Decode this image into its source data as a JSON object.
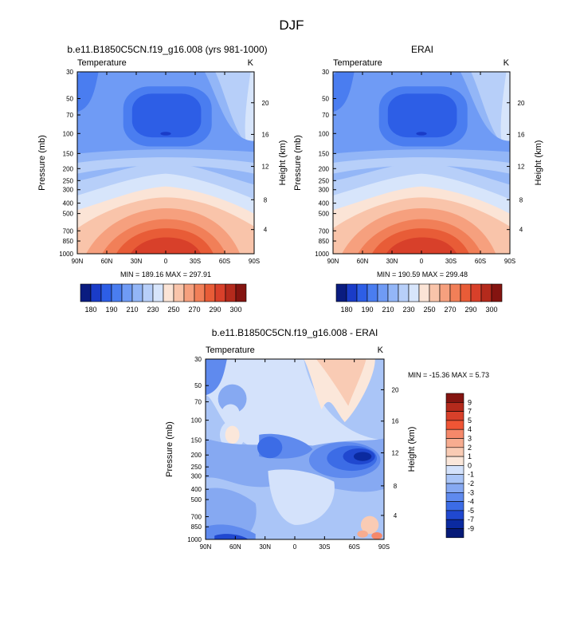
{
  "chart_data": [
    {
      "type": "heatmap",
      "title": "b.e11.B1850C5CN.f19_g16.008 (yrs 981-1000)",
      "left_label": "Temperature",
      "right_label": "K",
      "ylabel": "Pressure (mb)",
      "y2label": "Height (km)",
      "x_ticks": [
        "90N",
        "60N",
        "30N",
        "0",
        "30S",
        "60S",
        "90S"
      ],
      "y_ticks": [
        "30",
        "50",
        "70",
        "100",
        "150",
        "200",
        "250",
        "300",
        "400",
        "500",
        "700",
        "850",
        "1000"
      ],
      "y2_ticks": [
        "20",
        "16",
        "12",
        "8",
        "4"
      ],
      "minmax": "MIN = 189.16  MAX = 297.91",
      "min": 189.16,
      "max": 297.91,
      "colorbar_labels": [
        "180",
        "190",
        "210",
        "230",
        "250",
        "270",
        "290",
        "300"
      ]
    },
    {
      "type": "heatmap",
      "title": "ERAI",
      "left_label": "Temperature",
      "right_label": "K",
      "ylabel": "Pressure (mb)",
      "y2label": "Height (km)",
      "x_ticks": [
        "90N",
        "60N",
        "30N",
        "0",
        "30S",
        "60S",
        "90S"
      ],
      "y_ticks": [
        "30",
        "50",
        "70",
        "100",
        "150",
        "200",
        "250",
        "300",
        "400",
        "500",
        "700",
        "850",
        "1000"
      ],
      "y2_ticks": [
        "20",
        "16",
        "12",
        "8",
        "4"
      ],
      "minmax": "MIN = 190.59  MAX = 299.48",
      "min": 190.59,
      "max": 299.48,
      "colorbar_labels": [
        "180",
        "190",
        "210",
        "230",
        "250",
        "270",
        "290",
        "300"
      ]
    },
    {
      "type": "heatmap",
      "title": "b.e11.B1850C5CN.f19_g16.008 - ERAI",
      "left_label": "Temperature",
      "right_label": "K",
      "ylabel": "Pressure (mb)",
      "y2label": "Height (km)",
      "x_ticks": [
        "90N",
        "60N",
        "30N",
        "0",
        "30S",
        "60S",
        "90S"
      ],
      "y_ticks": [
        "30",
        "50",
        "70",
        "100",
        "150",
        "200",
        "250",
        "300",
        "400",
        "500",
        "700",
        "850",
        "1000"
      ],
      "y2_ticks": [
        "20",
        "16",
        "12",
        "8",
        "4"
      ],
      "minmax": "MIN = -15.36  MAX =   5.73",
      "min": -15.36,
      "max": 5.73,
      "colorbar_labels": [
        "9",
        "7",
        "5",
        "4",
        "3",
        "2",
        "1",
        "0",
        "-1",
        "-2",
        "-3",
        "-4",
        "-5",
        "-7",
        "-9"
      ]
    }
  ],
  "page_title": "DJF",
  "colors": {
    "temp_scale": [
      "#0a1c80",
      "#1a3cc8",
      "#2d5ee6",
      "#4a7df0",
      "#6f9bf5",
      "#93b6f7",
      "#b7cff9",
      "#d7e5fb",
      "#fbe4d6",
      "#f9c4aa",
      "#f6a07e",
      "#f17f58",
      "#e85c37",
      "#d8402a",
      "#b42a1c",
      "#841410"
    ],
    "diff_scale": [
      "#841410",
      "#b42a1c",
      "#d8402a",
      "#ef5535",
      "#f5886a",
      "#f7ac90",
      "#f9cbb4",
      "#fbe7da",
      "#d4e2fb",
      "#aac5f7",
      "#86a9f2",
      "#5f8aee",
      "#3c6ce6",
      "#2048d0",
      "#0b2aa0",
      "#061a78"
    ]
  }
}
